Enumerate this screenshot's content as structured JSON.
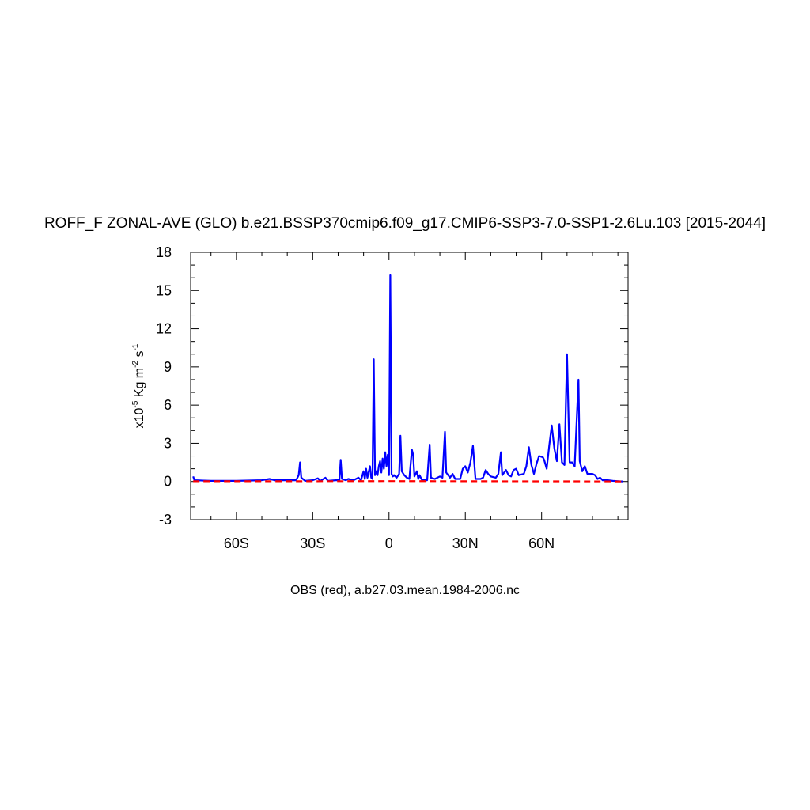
{
  "chart_data": {
    "type": "line",
    "title": "ROFF_F ZONAL-AVE (GLO) b.e21.BSSP370cmip6.f09_g17.CMIP6-SSP3-7.0-SSP1-2.6Lu.103 [2015-2044]",
    "footer": "OBS (red), a.b27.03.mean.1984-2006.nc",
    "ylabel_parts": {
      "prefix": "x10",
      "exp1": "-5",
      "mid": " Kg m",
      "exp2": "-2",
      "mid2": " s",
      "exp3": "-1"
    },
    "xlim": [
      -78,
      94
    ],
    "ylim": [
      -3,
      18
    ],
    "xticks": [
      {
        "value": -60,
        "label": "60S"
      },
      {
        "value": -30,
        "label": "30S"
      },
      {
        "value": 0,
        "label": "0"
      },
      {
        "value": 30,
        "label": "30N"
      },
      {
        "value": 60,
        "label": "60N"
      }
    ],
    "yticks": [
      -3,
      0,
      3,
      6,
      9,
      12,
      15,
      18
    ],
    "series": [
      {
        "color": "#0000ff",
        "dash": false,
        "points": [
          [
            -77,
            0.4
          ],
          [
            -76.5,
            0.1
          ],
          [
            -70,
            0.05
          ],
          [
            -60,
            0.05
          ],
          [
            -50,
            0.1
          ],
          [
            -47,
            0.2
          ],
          [
            -45,
            0.1
          ],
          [
            -40,
            0.1
          ],
          [
            -36.5,
            0.1
          ],
          [
            -35.5,
            0.5
          ],
          [
            -35,
            1.5
          ],
          [
            -34.5,
            0.3
          ],
          [
            -33,
            0.05
          ],
          [
            -30,
            0.1
          ],
          [
            -28,
            0.25
          ],
          [
            -27,
            0.05
          ],
          [
            -25,
            0.3
          ],
          [
            -24,
            0.05
          ],
          [
            -21,
            0.1
          ],
          [
            -19.5,
            0.1
          ],
          [
            -19,
            1.7
          ],
          [
            -18.5,
            0.2
          ],
          [
            -17,
            0.1
          ],
          [
            -16,
            0.2
          ],
          [
            -14,
            0.1
          ],
          [
            -12,
            0.3
          ],
          [
            -11,
            0.1
          ],
          [
            -10,
            0.8
          ],
          [
            -9.5,
            0.2
          ],
          [
            -9,
            1.0
          ],
          [
            -8.5,
            0.3
          ],
          [
            -7.5,
            1.2
          ],
          [
            -7,
            0.3
          ],
          [
            -6.5,
            0.2
          ],
          [
            -6,
            9.6
          ],
          [
            -5.5,
            0.5
          ],
          [
            -5,
            0.8
          ],
          [
            -4.5,
            0.5
          ],
          [
            -4,
            1.2
          ],
          [
            -3.5,
            1.6
          ],
          [
            -3,
            0.7
          ],
          [
            -2.5,
            1.8
          ],
          [
            -2,
            1.0
          ],
          [
            -1.5,
            2.3
          ],
          [
            -1,
            1.2
          ],
          [
            -0.5,
            2.1
          ],
          [
            0,
            0.5
          ],
          [
            0.5,
            16.2
          ],
          [
            1,
            0.6
          ],
          [
            1.5,
            0.4
          ],
          [
            2,
            0.5
          ],
          [
            3,
            0.3
          ],
          [
            4,
            0.6
          ],
          [
            4.5,
            3.6
          ],
          [
            5,
            0.8
          ],
          [
            6,
            0.5
          ],
          [
            7,
            0.3
          ],
          [
            8,
            0.2
          ],
          [
            9,
            2.5
          ],
          [
            9.5,
            2.1
          ],
          [
            10,
            0.4
          ],
          [
            11,
            0.8
          ],
          [
            11.5,
            0.2
          ],
          [
            12,
            0.5
          ],
          [
            13,
            0.1
          ],
          [
            15,
            0.1
          ],
          [
            16,
            2.9
          ],
          [
            16.5,
            0.3
          ],
          [
            18,
            0.2
          ],
          [
            20,
            0.4
          ],
          [
            21,
            0.3
          ],
          [
            22,
            3.9
          ],
          [
            22.5,
            0.7
          ],
          [
            24,
            0.3
          ],
          [
            25,
            0.6
          ],
          [
            26,
            0.2
          ],
          [
            28,
            0.2
          ],
          [
            29,
            1.0
          ],
          [
            30,
            1.2
          ],
          [
            31,
            0.7
          ],
          [
            32,
            1.5
          ],
          [
            33,
            2.8
          ],
          [
            34,
            0.2
          ],
          [
            36,
            0.2
          ],
          [
            37,
            0.3
          ],
          [
            38,
            0.9
          ],
          [
            39,
            0.6
          ],
          [
            40,
            0.4
          ],
          [
            42,
            0.3
          ],
          [
            43,
            0.6
          ],
          [
            44,
            2.3
          ],
          [
            44.5,
            0.5
          ],
          [
            46,
            0.9
          ],
          [
            47,
            0.5
          ],
          [
            48,
            0.4
          ],
          [
            49,
            0.9
          ],
          [
            50,
            1.0
          ],
          [
            51,
            0.5
          ],
          [
            53,
            0.6
          ],
          [
            54,
            1.2
          ],
          [
            55,
            2.7
          ],
          [
            56,
            1.3
          ],
          [
            57,
            0.6
          ],
          [
            58,
            1.4
          ],
          [
            59,
            2.0
          ],
          [
            60.5,
            1.9
          ],
          [
            61,
            1.7
          ],
          [
            62,
            1.0
          ],
          [
            63,
            2.8
          ],
          [
            64,
            4.4
          ],
          [
            65,
            2.6
          ],
          [
            66,
            1.6
          ],
          [
            67,
            4.5
          ],
          [
            68,
            1.5
          ],
          [
            69,
            1.3
          ],
          [
            70,
            10.0
          ],
          [
            71,
            1.5
          ],
          [
            72,
            1.5
          ],
          [
            73,
            1.2
          ],
          [
            74.5,
            8.0
          ],
          [
            75,
            1.6
          ],
          [
            76,
            0.8
          ],
          [
            77,
            1.2
          ],
          [
            78,
            0.6
          ],
          [
            80,
            0.6
          ],
          [
            81,
            0.5
          ],
          [
            82,
            0.2
          ],
          [
            83,
            0.3
          ],
          [
            84,
            0.1
          ],
          [
            86,
            0.1
          ],
          [
            88,
            0.05
          ],
          [
            92,
            0.0
          ]
        ]
      },
      {
        "color": "#ff0000",
        "dash": true,
        "points": [
          [
            -77,
            0.02
          ],
          [
            -40,
            0.02
          ],
          [
            0,
            0.03
          ],
          [
            40,
            0.02
          ],
          [
            92,
            0.01
          ]
        ]
      }
    ]
  }
}
